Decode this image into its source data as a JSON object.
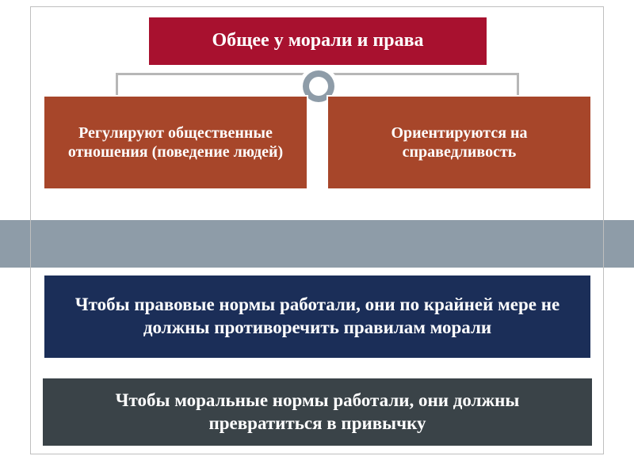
{
  "colors": {
    "stripe": "#8e9ca8",
    "title_bg": "#a8112f",
    "connector": "#b7b7b7",
    "ring": "#8e9ca8",
    "child_bg": "#a7462a",
    "band1_bg": "#1b2e58",
    "band2_bg": "#3a4348",
    "frame_border": "#bfbfbf"
  },
  "title": "Общее у морали и права",
  "children": {
    "left": "Регулируют общественные отношения (поведение людей)",
    "right": "Ориентируются на справедливость"
  },
  "bands": {
    "b1": "Чтобы правовые нормы работали, они по крайней мере не должны противоречить правилам морали",
    "b2": "Чтобы моральные нормы работали, они должны превратиться в привычку"
  },
  "fontsize": {
    "title": 24,
    "child": 20,
    "band": 23
  }
}
